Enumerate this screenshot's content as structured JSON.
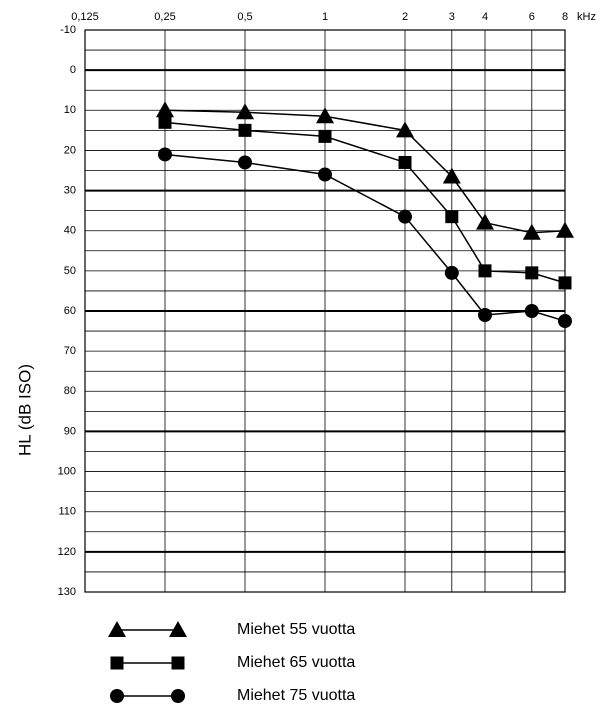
{
  "chart_data": {
    "type": "line",
    "y_label": "HL (dB ISO)",
    "x_unit": "kHz",
    "x": [
      0.25,
      0.5,
      1,
      2,
      3,
      4,
      6,
      8
    ],
    "xscale": "log",
    "xlim": [
      0.125,
      8
    ],
    "xticks": [
      {
        "value": 0.125,
        "label": "0,125"
      },
      {
        "value": 0.25,
        "label": "0,25"
      },
      {
        "value": 0.5,
        "label": "0,5"
      },
      1,
      2,
      3,
      4,
      6,
      8
    ],
    "ylim": [
      -10,
      130
    ],
    "y_inverted": true,
    "yticks": [
      -10,
      0,
      10,
      20,
      30,
      40,
      50,
      60,
      70,
      80,
      90,
      100,
      110,
      120,
      130
    ],
    "y_minor_ticks": [
      -5,
      5,
      15,
      25,
      35,
      45,
      55,
      65,
      75,
      85,
      95,
      105,
      115,
      125
    ],
    "bold_gridlines": [
      0,
      30,
      60,
      90,
      120
    ],
    "grid": true,
    "series": [
      {
        "name": "Miehet 55 vuotta",
        "color": "#000000",
        "marker": "triangle",
        "values": [
          10,
          10.5,
          11.5,
          15,
          26.5,
          38,
          40.5,
          40
        ]
      },
      {
        "name": "Miehet 65 vuotta",
        "color": "#000000",
        "marker": "square",
        "values": [
          13,
          15,
          16.5,
          23,
          36.5,
          50,
          50.5,
          53
        ]
      },
      {
        "name": "Miehet 75 vuotta",
        "color": "#000000",
        "marker": "circle",
        "values": [
          21,
          23,
          26,
          36.5,
          50.5,
          61,
          60,
          62.5
        ]
      }
    ]
  }
}
